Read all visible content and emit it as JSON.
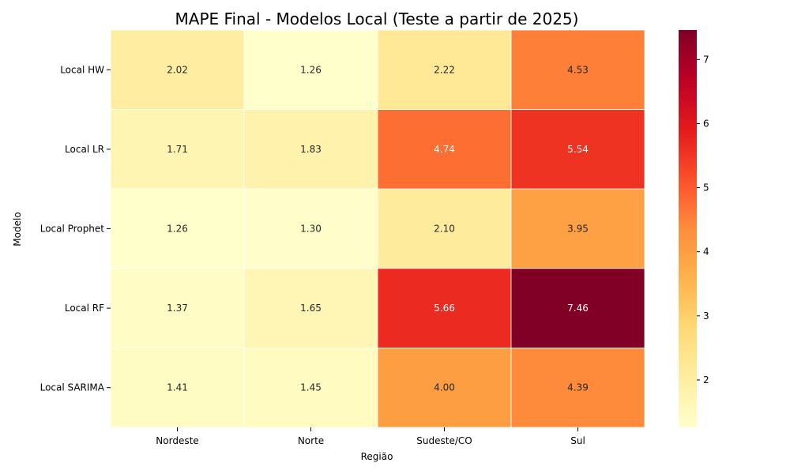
{
  "chart_data": {
    "type": "heatmap",
    "title": "MAPE Final - Modelos Local (Teste a partir de 2025)",
    "xlabel": "Região",
    "ylabel": "Modelo",
    "x_categories": [
      "Nordeste",
      "Norte",
      "Sudeste/CO",
      "Sul"
    ],
    "y_categories": [
      "Local HW",
      "Local LR",
      "Local Prophet",
      "Local RF",
      "Local SARIMA"
    ],
    "values": [
      [
        2.02,
        1.26,
        2.22,
        4.53
      ],
      [
        1.71,
        1.83,
        4.74,
        5.54
      ],
      [
        1.26,
        1.3,
        2.1,
        3.95
      ],
      [
        1.37,
        1.65,
        5.66,
        7.46
      ],
      [
        1.41,
        1.45,
        4.0,
        4.39
      ]
    ],
    "value_labels": [
      [
        "2.02",
        "1.26",
        "2.22",
        "4.53"
      ],
      [
        "1.71",
        "1.83",
        "4.74",
        "5.54"
      ],
      [
        "1.26",
        "1.30",
        "2.10",
        "3.95"
      ],
      [
        "1.37",
        "1.65",
        "5.66",
        "7.46"
      ],
      [
        "1.41",
        "1.45",
        "4.00",
        "4.39"
      ]
    ],
    "colormap": "YlOrRd",
    "color_range": [
      1.26,
      7.46
    ],
    "colorbar_ticks": [
      "2",
      "3",
      "4",
      "5",
      "6",
      "7"
    ],
    "colorbar_tick_values": [
      2,
      3,
      4,
      5,
      6,
      7
    ],
    "legend": "colorbar-right",
    "grid": false
  }
}
